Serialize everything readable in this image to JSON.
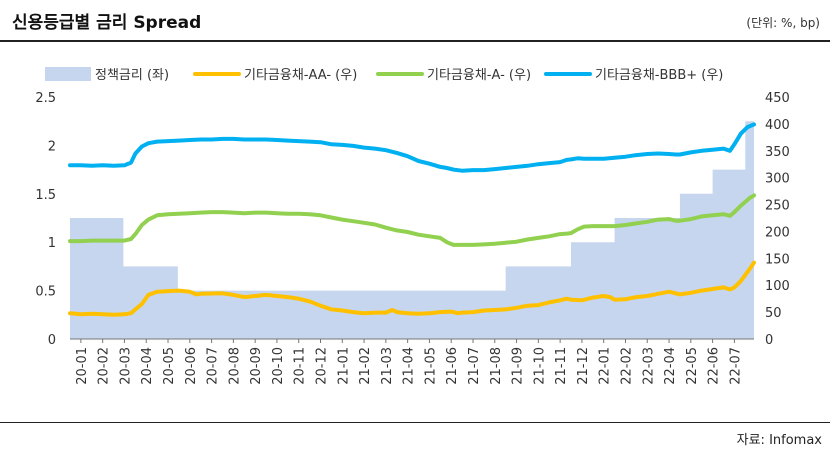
{
  "header": {
    "title": "신용등급별 금리 Spread",
    "unit": "(단위: %, bp)"
  },
  "footer": {
    "source": "자료: Infomax"
  },
  "colors": {
    "bar": "#c6d6ee",
    "aa": "#ffc000",
    "a": "#92d050",
    "bbb": "#00b0f0"
  },
  "chart_data": {
    "type": "line",
    "title": "신용등급별 금리 Spread",
    "legend_position": "top",
    "grid": false,
    "categories": [
      "20-01",
      "20-02",
      "20-03",
      "20-04",
      "20-05",
      "20-06",
      "20-07",
      "20-08",
      "20-09",
      "20-10",
      "20-11",
      "20-12",
      "21-01",
      "21-02",
      "21-03",
      "21-04",
      "21-05",
      "21-06",
      "21-07",
      "21-08",
      "21-09",
      "21-10",
      "21-11",
      "21-12",
      "22-01",
      "22-02",
      "22-03",
      "22-04",
      "22-05",
      "22-06",
      "22-07"
    ],
    "y_left": {
      "min": 0,
      "max": 2.5,
      "ticks": [
        "0",
        "0.5",
        "1",
        "1.5",
        "2",
        "2.5"
      ]
    },
    "y_right": {
      "min": 0,
      "max": 450,
      "ticks": [
        "0",
        "50",
        "100",
        "150",
        "200",
        "250",
        "300",
        "350",
        "400",
        "450"
      ]
    },
    "bar_series": {
      "name": "정책금리 (좌)",
      "axis": "left",
      "steps": [
        {
          "x": 0.0,
          "y": 1.25
        },
        {
          "x": 2.45,
          "y": 0.75
        },
        {
          "x": 4.95,
          "y": 0.5
        },
        {
          "x": 20.0,
          "y": 0.75
        },
        {
          "x": 23.0,
          "y": 1.0
        },
        {
          "x": 25.0,
          "y": 1.25
        },
        {
          "x": 28.0,
          "y": 1.5
        },
        {
          "x": 29.5,
          "y": 1.75
        },
        {
          "x": 31.0,
          "y": 2.25
        },
        {
          "x": 31.4,
          "y": 2.25
        }
      ]
    },
    "series": [
      {
        "name": "기타금융채-AA- (우)",
        "axis": "right",
        "color_key": "aa",
        "points": [
          [
            0.0,
            48
          ],
          [
            0.5,
            46
          ],
          [
            1.0,
            47
          ],
          [
            1.5,
            46
          ],
          [
            2.0,
            45
          ],
          [
            2.5,
            46
          ],
          [
            2.8,
            48
          ],
          [
            3.0,
            55
          ],
          [
            3.3,
            65
          ],
          [
            3.6,
            82
          ],
          [
            4.0,
            88
          ],
          [
            4.5,
            89
          ],
          [
            5.0,
            90
          ],
          [
            5.5,
            88
          ],
          [
            5.8,
            83
          ],
          [
            6.0,
            84
          ],
          [
            7.0,
            85
          ],
          [
            7.5,
            82
          ],
          [
            8.0,
            78
          ],
          [
            8.5,
            80
          ],
          [
            9.0,
            82
          ],
          [
            9.5,
            80
          ],
          [
            10.0,
            78
          ],
          [
            10.5,
            75
          ],
          [
            11.0,
            70
          ],
          [
            11.5,
            62
          ],
          [
            12.0,
            55
          ],
          [
            12.5,
            53
          ],
          [
            13.0,
            50
          ],
          [
            13.5,
            48
          ],
          [
            14.0,
            49
          ],
          [
            14.5,
            49
          ],
          [
            14.8,
            54
          ],
          [
            15.0,
            50
          ],
          [
            15.5,
            48
          ],
          [
            16.0,
            47
          ],
          [
            16.5,
            48
          ],
          [
            17.0,
            50
          ],
          [
            17.5,
            51
          ],
          [
            17.8,
            48
          ],
          [
            18.0,
            49
          ],
          [
            18.5,
            50
          ],
          [
            19.0,
            53
          ],
          [
            19.5,
            54
          ],
          [
            20.0,
            55
          ],
          [
            20.5,
            58
          ],
          [
            21.0,
            62
          ],
          [
            21.5,
            63
          ],
          [
            22.0,
            68
          ],
          [
            22.5,
            72
          ],
          [
            22.8,
            75
          ],
          [
            23.0,
            73
          ],
          [
            23.5,
            72
          ],
          [
            24.0,
            77
          ],
          [
            24.5,
            80
          ],
          [
            24.8,
            78
          ],
          [
            25.0,
            73
          ],
          [
            25.5,
            74
          ],
          [
            26.0,
            78
          ],
          [
            26.5,
            80
          ],
          [
            27.0,
            84
          ],
          [
            27.5,
            88
          ],
          [
            27.8,
            85
          ],
          [
            28.0,
            83
          ],
          [
            28.5,
            86
          ],
          [
            29.0,
            90
          ],
          [
            29.5,
            93
          ],
          [
            30.0,
            96
          ],
          [
            30.3,
            92
          ],
          [
            30.5,
            96
          ],
          [
            30.8,
            108
          ],
          [
            31.2,
            130
          ],
          [
            31.4,
            142
          ]
        ]
      },
      {
        "name": "기타금융채-A- (우)",
        "axis": "right",
        "color_key": "a",
        "points": [
          [
            0.0,
            182
          ],
          [
            0.5,
            182
          ],
          [
            1.0,
            183
          ],
          [
            1.5,
            183
          ],
          [
            2.0,
            183
          ],
          [
            2.5,
            183
          ],
          [
            2.8,
            186
          ],
          [
            3.0,
            195
          ],
          [
            3.3,
            212
          ],
          [
            3.6,
            222
          ],
          [
            4.0,
            230
          ],
          [
            4.5,
            232
          ],
          [
            5.0,
            233
          ],
          [
            5.5,
            234
          ],
          [
            6.0,
            235
          ],
          [
            6.5,
            236
          ],
          [
            7.0,
            236
          ],
          [
            7.5,
            235
          ],
          [
            8.0,
            234
          ],
          [
            8.5,
            235
          ],
          [
            9.0,
            235
          ],
          [
            9.5,
            234
          ],
          [
            10.0,
            233
          ],
          [
            10.5,
            233
          ],
          [
            11.0,
            232
          ],
          [
            11.5,
            230
          ],
          [
            12.0,
            226
          ],
          [
            12.5,
            222
          ],
          [
            13.0,
            219
          ],
          [
            13.5,
            216
          ],
          [
            14.0,
            213
          ],
          [
            14.5,
            207
          ],
          [
            15.0,
            202
          ],
          [
            15.5,
            199
          ],
          [
            16.0,
            194
          ],
          [
            16.5,
            191
          ],
          [
            17.0,
            188
          ],
          [
            17.3,
            180
          ],
          [
            17.6,
            175
          ],
          [
            18.0,
            175
          ],
          [
            18.5,
            175
          ],
          [
            19.0,
            176
          ],
          [
            19.5,
            177
          ],
          [
            20.0,
            179
          ],
          [
            20.5,
            181
          ],
          [
            21.0,
            185
          ],
          [
            21.5,
            188
          ],
          [
            22.0,
            191
          ],
          [
            22.5,
            195
          ],
          [
            22.8,
            196
          ],
          [
            23.0,
            197
          ],
          [
            23.3,
            204
          ],
          [
            23.6,
            209
          ],
          [
            24.0,
            210
          ],
          [
            24.5,
            210
          ],
          [
            25.0,
            210
          ],
          [
            25.5,
            212
          ],
          [
            26.0,
            215
          ],
          [
            26.5,
            218
          ],
          [
            27.0,
            222
          ],
          [
            27.5,
            223
          ],
          [
            27.8,
            220
          ],
          [
            28.0,
            220
          ],
          [
            28.5,
            223
          ],
          [
            29.0,
            228
          ],
          [
            29.5,
            230
          ],
          [
            30.0,
            232
          ],
          [
            30.3,
            229
          ],
          [
            30.5,
            236
          ],
          [
            30.8,
            248
          ],
          [
            31.2,
            262
          ],
          [
            31.4,
            267
          ]
        ]
      },
      {
        "name": "기타금융채-BBB+ (우)",
        "axis": "right",
        "color_key": "bbb",
        "points": [
          [
            0.0,
            323
          ],
          [
            0.5,
            323
          ],
          [
            1.0,
            322
          ],
          [
            1.5,
            323
          ],
          [
            2.0,
            322
          ],
          [
            2.5,
            323
          ],
          [
            2.8,
            328
          ],
          [
            3.0,
            345
          ],
          [
            3.3,
            358
          ],
          [
            3.6,
            364
          ],
          [
            4.0,
            367
          ],
          [
            4.5,
            368
          ],
          [
            5.0,
            369
          ],
          [
            5.5,
            370
          ],
          [
            6.0,
            371
          ],
          [
            6.5,
            371
          ],
          [
            7.0,
            372
          ],
          [
            7.5,
            372
          ],
          [
            8.0,
            371
          ],
          [
            8.5,
            371
          ],
          [
            9.0,
            371
          ],
          [
            9.5,
            370
          ],
          [
            10.0,
            369
          ],
          [
            10.5,
            368
          ],
          [
            11.0,
            367
          ],
          [
            11.5,
            366
          ],
          [
            12.0,
            362
          ],
          [
            12.5,
            361
          ],
          [
            13.0,
            359
          ],
          [
            13.5,
            356
          ],
          [
            14.0,
            354
          ],
          [
            14.5,
            351
          ],
          [
            15.0,
            346
          ],
          [
            15.5,
            340
          ],
          [
            16.0,
            331
          ],
          [
            16.5,
            326
          ],
          [
            17.0,
            320
          ],
          [
            17.3,
            318
          ],
          [
            17.6,
            315
          ],
          [
            18.0,
            313
          ],
          [
            18.5,
            314
          ],
          [
            19.0,
            314
          ],
          [
            19.5,
            316
          ],
          [
            20.0,
            318
          ],
          [
            20.5,
            320
          ],
          [
            21.0,
            322
          ],
          [
            21.5,
            325
          ],
          [
            22.0,
            327
          ],
          [
            22.5,
            329
          ],
          [
            22.8,
            333
          ],
          [
            23.0,
            334
          ],
          [
            23.3,
            336
          ],
          [
            23.6,
            335
          ],
          [
            24.0,
            335
          ],
          [
            24.5,
            335
          ],
          [
            25.0,
            337
          ],
          [
            25.5,
            339
          ],
          [
            26.0,
            342
          ],
          [
            26.5,
            344
          ],
          [
            27.0,
            345
          ],
          [
            27.5,
            344
          ],
          [
            27.8,
            343
          ],
          [
            28.0,
            343
          ],
          [
            28.5,
            347
          ],
          [
            29.0,
            350
          ],
          [
            29.5,
            352
          ],
          [
            30.0,
            354
          ],
          [
            30.3,
            350
          ],
          [
            30.5,
            362
          ],
          [
            30.8,
            382
          ],
          [
            31.1,
            394
          ],
          [
            31.4,
            399
          ]
        ]
      }
    ]
  }
}
